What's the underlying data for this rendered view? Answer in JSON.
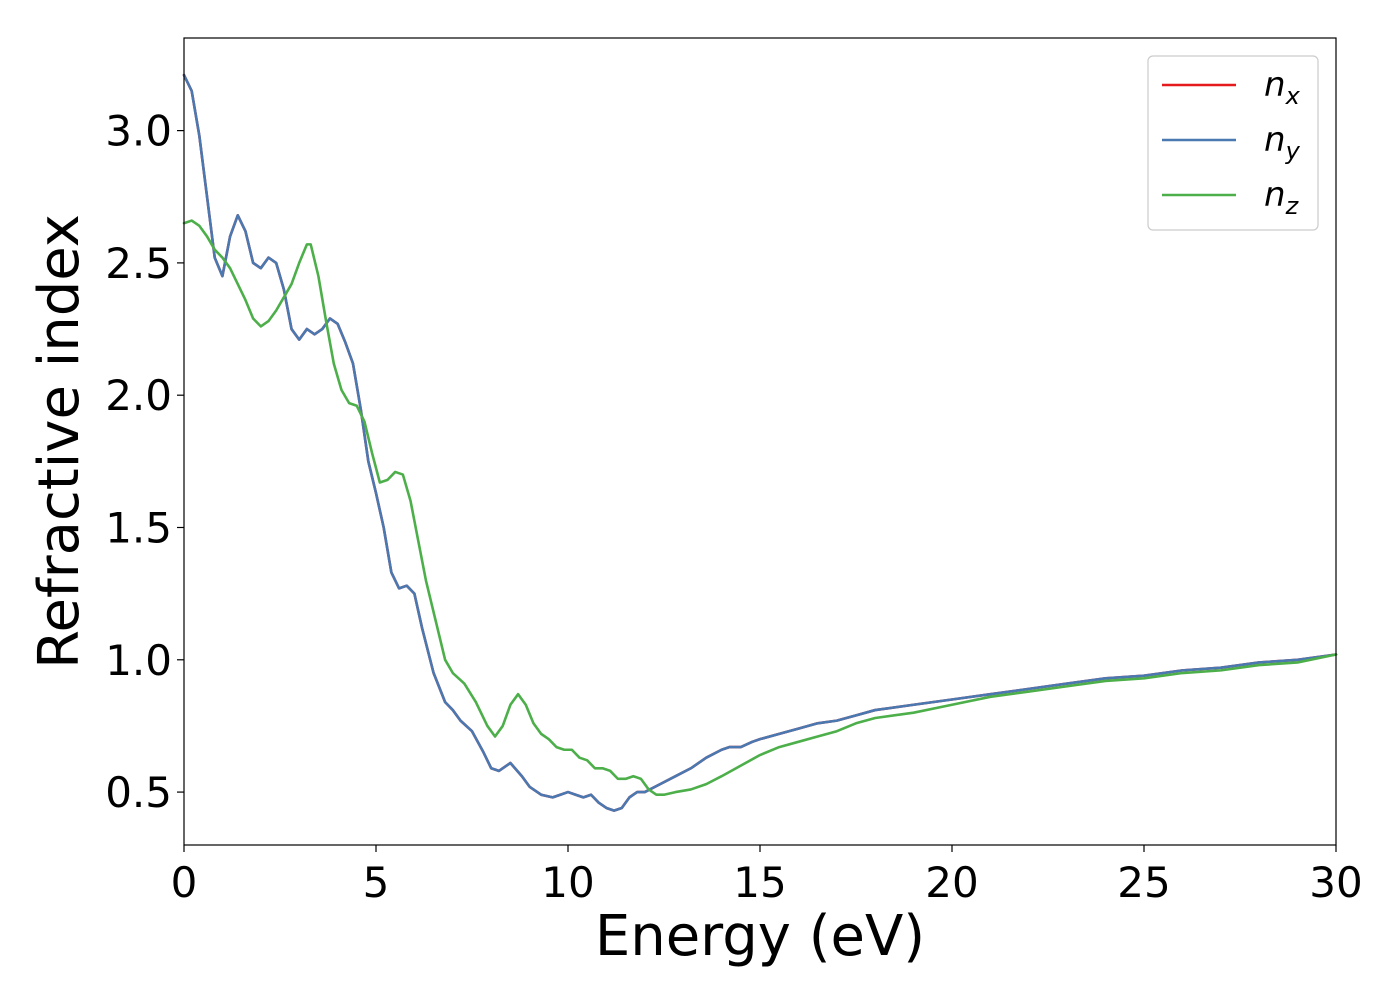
{
  "chart_data": {
    "type": "line",
    "title": "",
    "xlabel": "Energy (eV)",
    "ylabel": "Refractive index",
    "xlim": [
      0,
      30
    ],
    "ylim": [
      0.3,
      3.35
    ],
    "grid": false,
    "legend_position": "top-right",
    "x_ticks": [
      0,
      5,
      10,
      15,
      20,
      25,
      30
    ],
    "x_tick_labels": [
      "0",
      "5",
      "10",
      "15",
      "20",
      "25",
      "30"
    ],
    "y_ticks": [
      0.5,
      1.0,
      1.5,
      2.0,
      2.5,
      3.0
    ],
    "y_tick_labels": [
      "0.5",
      "1.0",
      "1.5",
      "2.0",
      "2.5",
      "3.0"
    ],
    "series": [
      {
        "name": "n_x",
        "label_base": "n",
        "label_sub": "x",
        "color": "#e41a1c",
        "x": [
          0,
          0.2,
          0.4,
          0.6,
          0.8,
          1.0,
          1.2,
          1.4,
          1.6,
          1.8,
          2.0,
          2.2,
          2.4,
          2.6,
          2.8,
          3.0,
          3.2,
          3.4,
          3.6,
          3.8,
          4.0,
          4.2,
          4.4,
          4.6,
          4.8,
          5.0,
          5.2,
          5.4,
          5.6,
          5.8,
          6.0,
          6.2,
          6.5,
          6.8,
          7.0,
          7.2,
          7.5,
          7.8,
          8.0,
          8.2,
          8.5,
          8.8,
          9.0,
          9.3,
          9.6,
          9.8,
          10.0,
          10.2,
          10.4,
          10.6,
          10.8,
          11.0,
          11.2,
          11.4,
          11.6,
          11.8,
          12.0,
          12.4,
          12.8,
          13.2,
          13.6,
          14.0,
          14.2,
          14.5,
          14.8,
          15.0,
          15.5,
          16.0,
          16.5,
          17.0,
          17.5,
          18.0,
          19.0,
          20.0,
          21.0,
          22.0,
          23.0,
          24.0,
          25.0,
          26.0,
          27.0,
          28.0,
          29.0,
          30.0
        ],
        "y": [
          3.21,
          3.15,
          2.98,
          2.75,
          2.52,
          2.45,
          2.6,
          2.68,
          2.62,
          2.5,
          2.48,
          2.52,
          2.5,
          2.4,
          2.25,
          2.21,
          2.25,
          2.23,
          2.25,
          2.29,
          2.27,
          2.2,
          2.12,
          1.95,
          1.75,
          1.63,
          1.5,
          1.33,
          1.27,
          1.28,
          1.25,
          1.12,
          0.95,
          0.84,
          0.81,
          0.77,
          0.73,
          0.65,
          0.59,
          0.58,
          0.61,
          0.56,
          0.52,
          0.49,
          0.48,
          0.49,
          0.5,
          0.49,
          0.48,
          0.49,
          0.46,
          0.44,
          0.43,
          0.44,
          0.48,
          0.5,
          0.5,
          0.53,
          0.56,
          0.59,
          0.63,
          0.66,
          0.67,
          0.67,
          0.69,
          0.7,
          0.72,
          0.74,
          0.76,
          0.77,
          0.79,
          0.81,
          0.83,
          0.85,
          0.87,
          0.89,
          0.91,
          0.93,
          0.94,
          0.96,
          0.97,
          0.99,
          1.0,
          1.02
        ]
      },
      {
        "name": "n_y",
        "label_base": "n",
        "label_sub": "y",
        "color": "#4a78b0",
        "x": [
          0,
          0.2,
          0.4,
          0.6,
          0.8,
          1.0,
          1.2,
          1.4,
          1.6,
          1.8,
          2.0,
          2.2,
          2.4,
          2.6,
          2.8,
          3.0,
          3.2,
          3.4,
          3.6,
          3.8,
          4.0,
          4.2,
          4.4,
          4.6,
          4.8,
          5.0,
          5.2,
          5.4,
          5.6,
          5.8,
          6.0,
          6.2,
          6.5,
          6.8,
          7.0,
          7.2,
          7.5,
          7.8,
          8.0,
          8.2,
          8.5,
          8.8,
          9.0,
          9.3,
          9.6,
          9.8,
          10.0,
          10.2,
          10.4,
          10.6,
          10.8,
          11.0,
          11.2,
          11.4,
          11.6,
          11.8,
          12.0,
          12.4,
          12.8,
          13.2,
          13.6,
          14.0,
          14.2,
          14.5,
          14.8,
          15.0,
          15.5,
          16.0,
          16.5,
          17.0,
          17.5,
          18.0,
          19.0,
          20.0,
          21.0,
          22.0,
          23.0,
          24.0,
          25.0,
          26.0,
          27.0,
          28.0,
          29.0,
          30.0
        ],
        "y": [
          3.21,
          3.15,
          2.98,
          2.75,
          2.52,
          2.45,
          2.6,
          2.68,
          2.62,
          2.5,
          2.48,
          2.52,
          2.5,
          2.4,
          2.25,
          2.21,
          2.25,
          2.23,
          2.25,
          2.29,
          2.27,
          2.2,
          2.12,
          1.95,
          1.75,
          1.63,
          1.5,
          1.33,
          1.27,
          1.28,
          1.25,
          1.12,
          0.95,
          0.84,
          0.81,
          0.77,
          0.73,
          0.65,
          0.59,
          0.58,
          0.61,
          0.56,
          0.52,
          0.49,
          0.48,
          0.49,
          0.5,
          0.49,
          0.48,
          0.49,
          0.46,
          0.44,
          0.43,
          0.44,
          0.48,
          0.5,
          0.5,
          0.53,
          0.56,
          0.59,
          0.63,
          0.66,
          0.67,
          0.67,
          0.69,
          0.7,
          0.72,
          0.74,
          0.76,
          0.77,
          0.79,
          0.81,
          0.83,
          0.85,
          0.87,
          0.89,
          0.91,
          0.93,
          0.94,
          0.96,
          0.97,
          0.99,
          1.0,
          1.02
        ]
      },
      {
        "name": "n_z",
        "label_base": "n",
        "label_sub": "z",
        "color": "#4daf4a",
        "x": [
          0,
          0.2,
          0.4,
          0.6,
          0.8,
          1.0,
          1.2,
          1.4,
          1.6,
          1.8,
          2.0,
          2.2,
          2.4,
          2.6,
          2.8,
          3.0,
          3.2,
          3.3,
          3.5,
          3.7,
          3.9,
          4.1,
          4.3,
          4.5,
          4.7,
          4.9,
          5.1,
          5.3,
          5.5,
          5.7,
          5.9,
          6.1,
          6.3,
          6.5,
          6.8,
          7.0,
          7.3,
          7.6,
          7.9,
          8.1,
          8.3,
          8.5,
          8.7,
          8.9,
          9.1,
          9.3,
          9.5,
          9.7,
          9.9,
          10.1,
          10.3,
          10.5,
          10.7,
          10.9,
          11.1,
          11.3,
          11.5,
          11.7,
          11.9,
          12.1,
          12.3,
          12.5,
          12.8,
          13.2,
          13.6,
          14.0,
          14.5,
          15.0,
          15.5,
          16.0,
          16.5,
          17.0,
          17.5,
          18.0,
          19.0,
          20.0,
          21.0,
          22.0,
          23.0,
          24.0,
          25.0,
          26.0,
          27.0,
          28.0,
          29.0,
          30.0
        ],
        "y": [
          2.65,
          2.66,
          2.64,
          2.6,
          2.55,
          2.52,
          2.48,
          2.42,
          2.36,
          2.29,
          2.26,
          2.28,
          2.32,
          2.37,
          2.42,
          2.5,
          2.57,
          2.57,
          2.45,
          2.28,
          2.12,
          2.02,
          1.97,
          1.96,
          1.9,
          1.78,
          1.67,
          1.68,
          1.71,
          1.7,
          1.6,
          1.45,
          1.3,
          1.18,
          1.0,
          0.95,
          0.91,
          0.84,
          0.75,
          0.71,
          0.75,
          0.83,
          0.87,
          0.83,
          0.76,
          0.72,
          0.7,
          0.67,
          0.66,
          0.66,
          0.63,
          0.62,
          0.59,
          0.59,
          0.58,
          0.55,
          0.55,
          0.56,
          0.55,
          0.51,
          0.49,
          0.49,
          0.5,
          0.51,
          0.53,
          0.56,
          0.6,
          0.64,
          0.67,
          0.69,
          0.71,
          0.73,
          0.76,
          0.78,
          0.8,
          0.83,
          0.86,
          0.88,
          0.9,
          0.92,
          0.93,
          0.95,
          0.96,
          0.98,
          0.99,
          1.02
        ]
      }
    ]
  }
}
